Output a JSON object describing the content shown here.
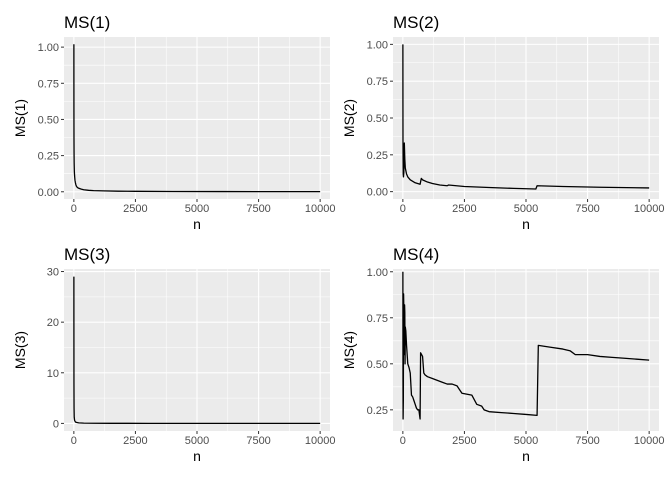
{
  "figure": {
    "background": "#ffffff",
    "panel_background": "#ebebeb",
    "grid_color": "#ffffff",
    "line_color": "#000000"
  },
  "chart_data": [
    {
      "type": "line",
      "title": "MS(1)",
      "xlabel": "n",
      "ylabel": "MS(1)",
      "xlim": [
        -400,
        10400
      ],
      "ylim": [
        -0.05,
        1.07
      ],
      "xticks": [
        0,
        2500,
        5000,
        7500,
        10000
      ],
      "xtick_labels": [
        "0",
        "2500",
        "5000",
        "7500",
        "10000"
      ],
      "yticks": [
        0,
        0.25,
        0.5,
        0.75,
        1
      ],
      "ytick_labels": [
        "0.00",
        "0.25",
        "0.50",
        "0.75",
        "1.00"
      ],
      "grid": true,
      "series": [
        {
          "x": [
            1,
            2,
            3,
            5,
            8,
            12,
            20,
            30,
            45,
            60,
            80,
            100,
            140,
            200,
            300,
            400,
            600,
            800,
            1200,
            1800,
            2500,
            4000,
            6000,
            8000,
            10000
          ],
          "y": [
            1.02,
            0.75,
            0.55,
            0.38,
            0.27,
            0.2,
            0.14,
            0.11,
            0.08,
            0.065,
            0.05,
            0.04,
            0.03,
            0.024,
            0.018,
            0.014,
            0.01,
            0.008,
            0.006,
            0.004,
            0.003,
            0.002,
            0.0015,
            0.001,
            0.001
          ]
        }
      ]
    },
    {
      "type": "line",
      "title": "MS(2)",
      "xlabel": "n",
      "ylabel": "MS(2)",
      "xlim": [
        -400,
        10400
      ],
      "ylim": [
        -0.05,
        1.05
      ],
      "xticks": [
        0,
        2500,
        5000,
        7500,
        10000
      ],
      "xtick_labels": [
        "0",
        "2500",
        "5000",
        "7500",
        "10000"
      ],
      "yticks": [
        0,
        0.25,
        0.5,
        0.75,
        1
      ],
      "ytick_labels": [
        "0.00",
        "0.25",
        "0.50",
        "0.75",
        "1.00"
      ],
      "grid": true,
      "series": [
        {
          "x": [
            1,
            3,
            5,
            10,
            15,
            25,
            40,
            60,
            80,
            100,
            150,
            200,
            300,
            400,
            500,
            600,
            700,
            750,
            800,
            1000,
            1200,
            1500,
            1800,
            1850,
            2500,
            3500,
            4500,
            5400,
            5450,
            6500,
            8000,
            10000
          ],
          "y": [
            1.0,
            0.6,
            0.35,
            0.22,
            0.12,
            0.1,
            0.13,
            0.33,
            0.22,
            0.16,
            0.12,
            0.1,
            0.08,
            0.07,
            0.06,
            0.055,
            0.05,
            0.09,
            0.08,
            0.065,
            0.055,
            0.045,
            0.04,
            0.045,
            0.035,
            0.028,
            0.022,
            0.018,
            0.04,
            0.035,
            0.03,
            0.025
          ]
        }
      ]
    },
    {
      "type": "line",
      "title": "MS(3)",
      "xlabel": "n",
      "ylabel": "MS(3)",
      "xlim": [
        -400,
        10400
      ],
      "ylim": [
        -1.5,
        30.5
      ],
      "xticks": [
        0,
        2500,
        5000,
        7500,
        10000
      ],
      "xtick_labels": [
        "0",
        "2500",
        "5000",
        "7500",
        "10000"
      ],
      "yticks": [
        0,
        10,
        20,
        30
      ],
      "ytick_labels": [
        "0",
        "10",
        "20",
        "30"
      ],
      "grid": true,
      "series": [
        {
          "x": [
            1,
            2,
            4,
            8,
            15,
            30,
            60,
            100,
            200,
            400,
            800,
            1500,
            3000,
            5000,
            7500,
            10000
          ],
          "y": [
            29,
            20,
            8,
            3,
            1.2,
            0.6,
            0.3,
            0.2,
            0.1,
            0.05,
            0.03,
            0.02,
            0.01,
            0.01,
            0.005,
            0.005
          ]
        }
      ]
    },
    {
      "type": "line",
      "title": "MS(4)",
      "xlabel": "n",
      "ylabel": "MS(4)",
      "xlim": [
        -400,
        10400
      ],
      "ylim": [
        0.135,
        1.015
      ],
      "xticks": [
        0,
        2500,
        5000,
        7500,
        10000
      ],
      "xtick_labels": [
        "0",
        "2500",
        "5000",
        "7500",
        "10000"
      ],
      "yticks": [
        0.25,
        0.5,
        0.75,
        1
      ],
      "ytick_labels": [
        "0.25",
        "0.50",
        "0.75",
        "1.00"
      ],
      "grid": true,
      "series": [
        {
          "x": [
            1,
            5,
            10,
            20,
            30,
            40,
            50,
            60,
            70,
            80,
            90,
            100,
            120,
            150,
            200,
            250,
            300,
            350,
            400,
            450,
            500,
            550,
            600,
            650,
            700,
            720,
            760,
            800,
            850,
            900,
            1000,
            1200,
            1400,
            1600,
            1800,
            2000,
            2200,
            2300,
            2400,
            2800,
            3000,
            3200,
            3300,
            3500,
            4000,
            4500,
            5000,
            5450,
            5500,
            6000,
            6500,
            6800,
            7000,
            7500,
            8000,
            8500,
            9000,
            9500,
            10000
          ],
          "y": [
            1.0,
            0.4,
            0.2,
            0.3,
            0.88,
            0.8,
            0.55,
            0.6,
            0.82,
            0.78,
            0.5,
            0.7,
            0.68,
            0.6,
            0.5,
            0.48,
            0.45,
            0.33,
            0.32,
            0.3,
            0.28,
            0.26,
            0.25,
            0.25,
            0.2,
            0.56,
            0.55,
            0.54,
            0.45,
            0.44,
            0.43,
            0.42,
            0.41,
            0.4,
            0.39,
            0.39,
            0.38,
            0.36,
            0.34,
            0.33,
            0.28,
            0.27,
            0.25,
            0.24,
            0.235,
            0.23,
            0.225,
            0.22,
            0.6,
            0.59,
            0.58,
            0.57,
            0.55,
            0.55,
            0.54,
            0.535,
            0.53,
            0.525,
            0.52
          ]
        }
      ]
    }
  ]
}
